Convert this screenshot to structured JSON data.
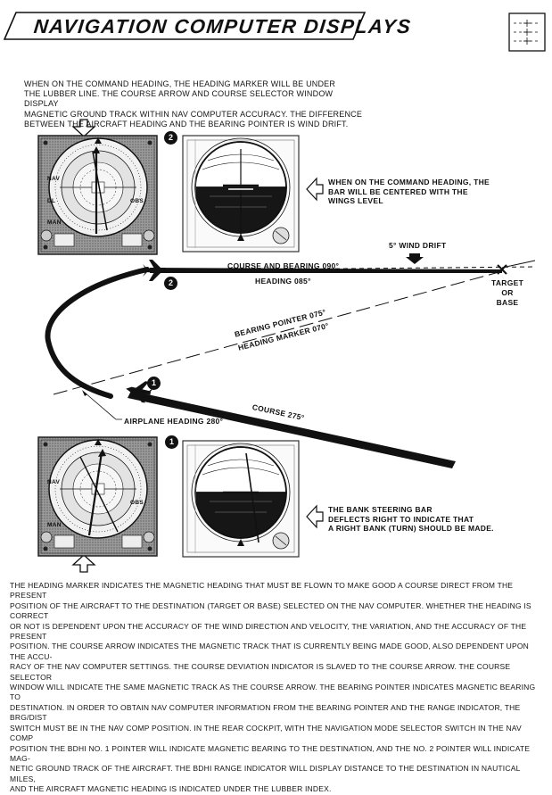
{
  "header": {
    "title": "NAVIGATION COMPUTER DISPLAYS"
  },
  "intro_text": [
    "WHEN ON THE COMMAND HEADING, THE HEADING MARKER WILL BE UNDER",
    "THE LUBBER LINE. THE COURSE ARROW AND COURSE SELECTOR WINDOW DISPLAY",
    "MAGNETIC GROUND TRACK WITHIN NAV COMPUTER ACCURACY. THE DIFFERENCE",
    "BETWEEN THE AIRCRAFT HEADING AND THE BEARING POINTER IS WIND DRIFT."
  ],
  "callouts": {
    "top_adi": [
      "WHEN ON THE COMMAND HEADING, THE",
      "BAR WILL BE CENTERED WITH THE",
      "WINGS LEVEL"
    ],
    "bottom_adi": [
      "THE BANK STEERING BAR",
      "DEFLECTS RIGHT TO INDICATE THAT",
      "A RIGHT BANK (TURN) SHOULD BE MADE."
    ]
  },
  "diagram": {
    "wind_drift": "5° WIND DRIFT",
    "course_bearing": "COURSE AND BEARING 090°",
    "heading_085": "HEADING 085°",
    "target": [
      "TARGET",
      "OR",
      "BASE"
    ],
    "bearing_pointer": "BEARING POINTER 075°",
    "heading_marker": "HEADING MARKER 070°",
    "course_275": "COURSE 275°",
    "airplane_heading": "AIRPLANE HEADING 280°",
    "marker_1": "1",
    "marker_2": "2"
  },
  "instrument_labels": {
    "nav": "NAV",
    "man": "MAN",
    "obs": "OBS",
    "dl": "DL"
  },
  "body_text": [
    "THE HEADING MARKER INDICATES THE MAGNETIC HEADING THAT MUST BE FLOWN TO MAKE GOOD A COURSE DIRECT FROM THE PRESENT",
    "POSITION OF THE AIRCRAFT TO THE DESTINATION (TARGET OR BASE) SELECTED ON THE NAV COMPUTER. WHETHER THE HEADING IS CORRECT",
    "OR NOT IS DEPENDENT UPON THE ACCURACY OF THE WIND DIRECTION AND VELOCITY, THE VARIATION, AND THE ACCURACY OF THE PRESENT",
    "POSITION. THE COURSE ARROW INDICATES THE MAGNETIC TRACK THAT IS CURRENTLY BEING MADE GOOD, ALSO DEPENDENT UPON THE ACCU-",
    "RACY OF THE NAV COMPUTER SETTINGS. THE COURSE DEVIATION INDICATOR IS SLAVED TO THE COURSE ARROW. THE COURSE SELECTOR",
    "WINDOW WILL INDICATE THE SAME MAGNETIC TRACK AS THE COURSE ARROW. THE BEARING POINTER INDICATES MAGNETIC BEARING TO",
    "DESTINATION. IN ORDER TO OBTAIN NAV COMPUTER INFORMATION FROM THE BEARING POINTER AND THE RANGE INDICATOR, THE BRG/DIST",
    "SWITCH MUST BE IN THE NAV COMP POSITION. IN THE REAR COCKPIT, WITH THE NAVIGATION MODE SELECTOR SWITCH IN THE NAV COMP",
    "POSITION THE BDHI NO. 1 POINTER WILL INDICATE MAGNETIC BEARING TO THE DESTINATION, AND THE NO. 2 POINTER WILL INDICATE MAG-",
    "NETIC GROUND TRACK OF THE AIRCRAFT. THE BDHI RANGE INDICATOR WILL DISPLAY DISTANCE TO THE DESTINATION IN NAUTICAL MILES,",
    "AND THE AIRCRAFT MAGNETIC HEADING IS INDICATED UNDER THE LUBBER INDEX."
  ]
}
